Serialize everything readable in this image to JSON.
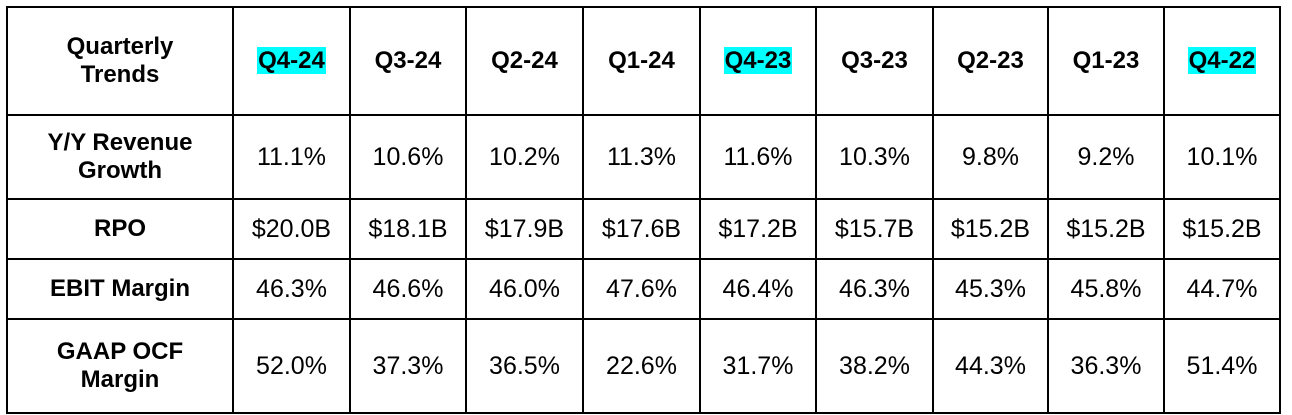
{
  "table": {
    "corner_label": "Quarterly Trends",
    "columns": [
      {
        "label": "Q4-24",
        "highlight": true
      },
      {
        "label": "Q3-24",
        "highlight": false
      },
      {
        "label": "Q2-24",
        "highlight": false
      },
      {
        "label": "Q1-24",
        "highlight": false
      },
      {
        "label": "Q4-23",
        "highlight": true
      },
      {
        "label": "Q3-23",
        "highlight": false
      },
      {
        "label": "Q2-23",
        "highlight": false
      },
      {
        "label": "Q1-23",
        "highlight": false
      },
      {
        "label": "Q4-22",
        "highlight": true
      }
    ],
    "highlight_color": "#00ffff",
    "rows": [
      {
        "label": "Y/Y Revenue Growth",
        "values": [
          "11.1%",
          "10.6%",
          "10.2%",
          "11.3%",
          "11.6%",
          "10.3%",
          "9.8%",
          "9.2%",
          "10.1%"
        ]
      },
      {
        "label": "RPO",
        "values": [
          "$20.0B",
          "$18.1B",
          "$17.9B",
          "$17.6B",
          "$17.2B",
          "$15.7B",
          "$15.2B",
          "$15.2B",
          "$15.2B"
        ]
      },
      {
        "label": "EBIT Margin",
        "values": [
          "46.3%",
          "46.6%",
          "46.0%",
          "47.6%",
          "46.4%",
          "46.3%",
          "45.3%",
          "45.8%",
          "44.7%"
        ]
      },
      {
        "label": "GAAP OCF Margin",
        "values": [
          "52.0%",
          "37.3%",
          "36.5%",
          "22.6%",
          "31.7%",
          "38.2%",
          "44.3%",
          "36.3%",
          "51.4%"
        ]
      }
    ]
  }
}
